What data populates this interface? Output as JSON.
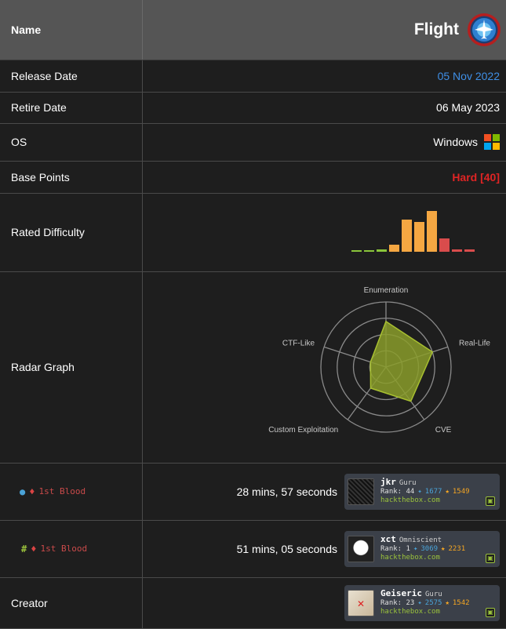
{
  "header": {
    "label": "Name",
    "machine_name": "Flight",
    "logo_icon": "airplane-logo-icon"
  },
  "rows": {
    "release_date": {
      "label": "Release Date",
      "value": "05 Nov 2022",
      "color": "#3f8fe6"
    },
    "retire_date": {
      "label": "Retire Date",
      "value": "06 May 2023"
    },
    "os": {
      "label": "OS",
      "value": "Windows",
      "icon": "windows-icon"
    },
    "base_points": {
      "label": "Base Points",
      "value": "Hard [40]",
      "color": "#e02424"
    },
    "rated_difficulty": {
      "label": "Rated Difficulty"
    },
    "radar_graph": {
      "label": "Radar Graph"
    },
    "user_blood": {
      "label": "1st Blood",
      "icon": "user-icon",
      "time": "28 mins, 57 seconds"
    },
    "root_blood": {
      "label": "1st Blood",
      "icon": "root-hash-icon",
      "time": "51 mins, 05 seconds"
    },
    "creator": {
      "label": "Creator"
    }
  },
  "difficulty_chart": {
    "type": "bar",
    "values": [
      1,
      1,
      2,
      6,
      27,
      25,
      34,
      11,
      2,
      2
    ],
    "colors": [
      "#8ac53b",
      "#8ac53b",
      "#8ac53b",
      "#f5a742",
      "#f5a742",
      "#f5a742",
      "#f5a742",
      "#d94c4c",
      "#d94c4c",
      "#d94c4c"
    ]
  },
  "radar_chart": {
    "type": "radar",
    "axes": [
      "Enumeration",
      "Real-Life",
      "CVE",
      "Custom Exploitation",
      "CTF-Like"
    ],
    "values": [
      0.7,
      0.75,
      0.65,
      0.4,
      0.25
    ],
    "fill": "#8a9c2a",
    "stroke": "#a8c030"
  },
  "cards": {
    "user_blood": {
      "name": "jkr",
      "title": "Guru",
      "rank": "Rank: 44",
      "points": "1677",
      "respect": "1549",
      "host": "hackthebox.com"
    },
    "root_blood": {
      "name": "xct",
      "title": "Omniscient",
      "rank": "Rank: 1",
      "points": "3069",
      "respect": "2231",
      "host": "hackthebox.com"
    },
    "creator": {
      "name": "Geiseric",
      "title": "Guru",
      "rank": "Rank: 23",
      "points": "2575",
      "respect": "1542",
      "host": "hackthebox.com"
    }
  }
}
